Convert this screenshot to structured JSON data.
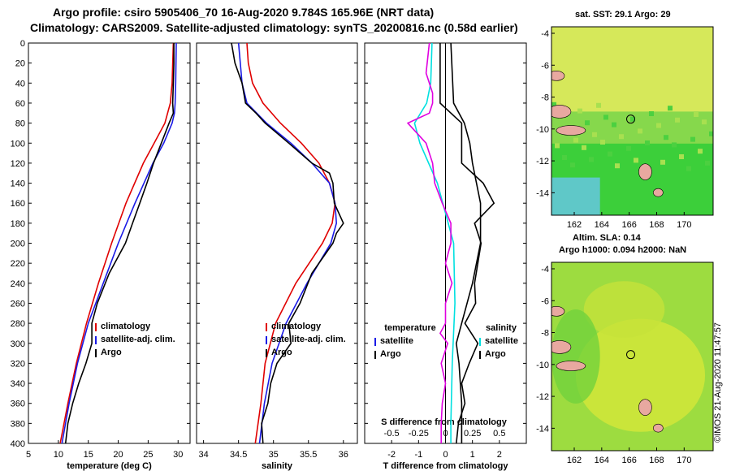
{
  "header": {
    "line1": "Argo profile: csiro 5905406_70 16-Aug-2020 9.784S 165.96E (NRT data)",
    "line2": "Climatology: CARS2009. Satellite-adjusted climatology: synTS_20200816.nc (0.58d earlier)"
  },
  "maps": {
    "sst_title": "sat. SST: 29.1 Argo: 29",
    "sla_title1": "Altim. SLA: 0.14",
    "sla_title2": "Argo h1000: 0.094 h2000: NaN",
    "lat_ticks": [
      "-4",
      "-6",
      "-8",
      "-10",
      "-12",
      "-14"
    ],
    "lon_ticks": [
      "162",
      "164",
      "166",
      "168",
      "170"
    ],
    "copyright": "©IMOS 21-Aug-2020 11:47:57"
  },
  "colors": {
    "climatology": "#e00000",
    "satellite": "#1a1ae6",
    "argo": "#000000",
    "t_diff": "#00e0e0",
    "s_diff": "#e000e0"
  },
  "chart_data": [
    {
      "type": "line",
      "xlabel": "temperature (deg C)",
      "ylabel": "depth",
      "xlim": [
        5,
        32
      ],
      "ylim": [
        400,
        0
      ],
      "xticks": [
        "5",
        "10",
        "15",
        "20",
        "25",
        "30"
      ],
      "yticks": [
        "0",
        "20",
        "40",
        "60",
        "80",
        "100",
        "120",
        "140",
        "160",
        "180",
        "200",
        "220",
        "240",
        "260",
        "280",
        "300",
        "320",
        "340",
        "360",
        "380",
        "400"
      ],
      "legend": [
        "climatology",
        "satellite-adj. clim.",
        "Argo"
      ],
      "series": [
        {
          "name": "climatology",
          "depth": [
            0,
            40,
            60,
            80,
            100,
            120,
            160,
            200,
            240,
            280,
            320,
            360,
            400
          ],
          "values": [
            29.2,
            29.0,
            28.7,
            27.8,
            26.0,
            24.2,
            21.3,
            18.9,
            16.7,
            14.7,
            13.0,
            11.6,
            10.3
          ]
        },
        {
          "name": "satellite-adj. clim.",
          "depth": [
            0,
            40,
            60,
            70,
            80,
            100,
            120,
            160,
            200,
            240,
            280,
            320,
            360,
            400
          ],
          "values": [
            29.7,
            29.6,
            29.5,
            29.4,
            29.0,
            27.6,
            25.8,
            22.8,
            20.0,
            17.5,
            15.0,
            13.2,
            11.8,
            10.6
          ]
        },
        {
          "name": "Argo",
          "depth": [
            0,
            20,
            40,
            60,
            70,
            80,
            100,
            120,
            140,
            160,
            180,
            200,
            230,
            260,
            280,
            300,
            320,
            340,
            360,
            380,
            400
          ],
          "values": [
            29.3,
            29.3,
            29.2,
            29.1,
            29.2,
            28.5,
            27.2,
            25.9,
            24.8,
            23.6,
            22.4,
            21.2,
            18.5,
            16.5,
            15.6,
            15.6,
            14.6,
            13.4,
            12.4,
            11.6,
            11.2
          ]
        }
      ]
    },
    {
      "type": "line",
      "xlabel": "salinity",
      "ylabel": "depth",
      "xlim": [
        33.9,
        36.2
      ],
      "ylim": [
        400,
        0
      ],
      "xticks": [
        "34",
        "34.5",
        "35",
        "35.5",
        "36"
      ],
      "legend": [
        "climatology",
        "satellite-adj. clim.",
        "Argo"
      ],
      "series": [
        {
          "name": "climatology",
          "depth": [
            0,
            20,
            40,
            60,
            80,
            100,
            120,
            140,
            160,
            180,
            200,
            240,
            280,
            320,
            360,
            400
          ],
          "values": [
            34.62,
            34.64,
            34.7,
            34.85,
            35.1,
            35.4,
            35.65,
            35.8,
            35.88,
            35.84,
            35.7,
            35.32,
            35.03,
            34.88,
            34.82,
            34.74
          ]
        },
        {
          "name": "satellite-adj. clim.",
          "depth": [
            0,
            40,
            60,
            80,
            100,
            120,
            140,
            160,
            180,
            200,
            240,
            280,
            320,
            360,
            400
          ],
          "values": [
            34.5,
            34.55,
            34.62,
            34.9,
            35.25,
            35.55,
            35.8,
            35.88,
            35.9,
            35.82,
            35.48,
            35.18,
            34.98,
            34.87,
            34.8
          ]
        },
        {
          "name": "Argo",
          "depth": [
            0,
            20,
            40,
            60,
            70,
            80,
            100,
            120,
            130,
            140,
            160,
            180,
            190,
            200,
            230,
            260,
            280,
            300,
            320,
            340,
            360,
            380,
            400
          ],
          "values": [
            34.4,
            34.45,
            34.55,
            34.6,
            34.75,
            34.88,
            35.22,
            35.55,
            35.8,
            35.85,
            35.87,
            36.0,
            35.9,
            35.85,
            35.55,
            35.38,
            35.22,
            35.25,
            35.05,
            34.96,
            34.92,
            34.83,
            34.85
          ]
        }
      ]
    },
    {
      "type": "line",
      "xlabel": "T difference from climatology",
      "xlabel_top": "S difference from climatology",
      "ylabel": "depth",
      "xlim": [
        -3,
        3
      ],
      "ylim": [
        400,
        0
      ],
      "xticks": [
        "-2",
        "-1",
        "0",
        "1",
        "2"
      ],
      "xticks_s": [
        "-0.5",
        "-0.25",
        "0",
        "0.25",
        "0.5"
      ],
      "legend_titles": [
        "temperature",
        "salinity"
      ],
      "legend": [
        "satellite",
        "Argo",
        "satellite",
        "Argo"
      ],
      "series": [
        {
          "name": "temperature satellite",
          "depth": [
            0,
            40,
            60,
            80,
            100,
            140,
            200,
            260,
            320,
            380,
            400
          ],
          "values": [
            -0.5,
            -0.55,
            -0.7,
            -1.15,
            -0.95,
            -0.3,
            0.3,
            0.35,
            0.25,
            0.2,
            0.2
          ]
        },
        {
          "name": "temperature Argo",
          "depth": [
            0,
            60,
            80,
            100,
            120,
            160,
            200,
            240,
            280,
            300,
            320,
            360,
            400
          ],
          "values": [
            0.2,
            0.3,
            0.7,
            0.9,
            1.0,
            1.3,
            1.3,
            1.0,
            0.6,
            0.4,
            0.5,
            0.6,
            0.6
          ]
        },
        {
          "name": "salinity satellite",
          "depth": [
            0,
            30,
            50,
            60,
            70,
            80,
            100,
            120,
            140,
            160,
            180,
            200,
            220,
            240,
            260,
            280,
            290,
            300,
            320,
            340,
            360,
            380,
            400
          ],
          "values": [
            -0.15,
            -0.18,
            -0.12,
            -0.12,
            -0.15,
            -0.35,
            -0.18,
            -0.12,
            -0.1,
            -0.03,
            0.05,
            0.05,
            0.0,
            0.06,
            0.0,
            0.0,
            -0.05,
            0.02,
            -0.04,
            0.0,
            -0.03,
            -0.04,
            -0.04
          ]
        },
        {
          "name": "salinity Argo",
          "depth": [
            0,
            60,
            80,
            100,
            120,
            140,
            160,
            180,
            200,
            220,
            240,
            260,
            280,
            300,
            320,
            340,
            360,
            380,
            400
          ],
          "values": [
            -0.05,
            -0.05,
            0.15,
            0.15,
            0.15,
            0.35,
            0.45,
            0.27,
            0.33,
            0.3,
            0.27,
            0.28,
            0.18,
            0.3,
            0.22,
            0.15,
            0.18,
            0.12,
            0.1
          ]
        }
      ]
    }
  ]
}
